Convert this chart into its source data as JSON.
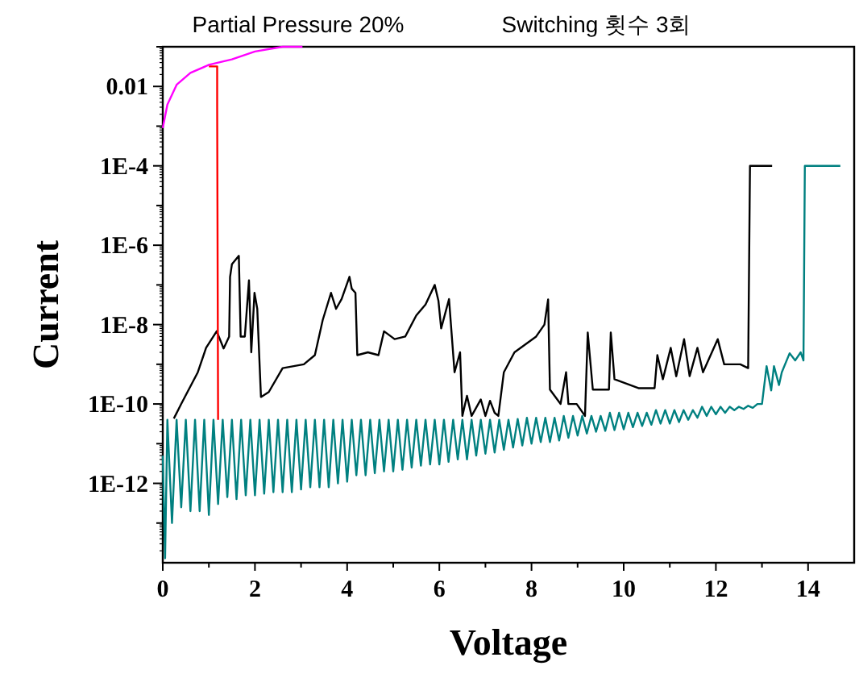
{
  "chart_data": {
    "type": "line",
    "xlabel": "Voltage",
    "ylabel": "Current",
    "log": "y",
    "annotations": [
      "Partial Pressure 20%",
      "Switching 횟수 3회"
    ],
    "xlim": [
      0,
      15
    ],
    "ylim": [
      1e-14,
      0.1
    ],
    "xticks": [
      0,
      {
        "value": 1,
        "label": null
      },
      2,
      {
        "value": 3,
        "label": null
      },
      4,
      {
        "value": 5,
        "label": null
      },
      6,
      {
        "value": 7,
        "label": null
      },
      8,
      {
        "value": 9,
        "label": null
      },
      10,
      {
        "value": 11,
        "label": null
      },
      12,
      {
        "value": 13,
        "label": null
      },
      14
    ],
    "yticks": [
      {
        "value": 1e-13,
        "label": null
      },
      {
        "value": 1e-12,
        "label": "1E-12"
      },
      {
        "value": 1e-11,
        "label": null
      },
      {
        "value": 1e-10,
        "label": "1E-10"
      },
      {
        "value": 1e-09,
        "label": null
      },
      {
        "value": 1e-08,
        "label": "1E-8"
      },
      {
        "value": 1e-07,
        "label": null
      },
      {
        "value": 1e-06,
        "label": "1E-6"
      },
      {
        "value": 1e-05,
        "label": null
      },
      {
        "value": 0.0001,
        "label": "1E-4"
      },
      {
        "value": 0.001,
        "label": null
      },
      {
        "value": 0.01,
        "label": "0.01"
      },
      {
        "value": 0.1,
        "label": null
      }
    ],
    "series": [
      {
        "color": "#008080",
        "x": [
          0,
          0.05,
          0.1,
          0.2,
          0.3,
          0.4,
          0.5,
          0.6,
          0.7,
          0.8,
          0.9,
          1.0,
          1.1,
          1.2,
          1.3,
          1.4,
          1.5,
          1.6,
          1.7,
          1.8,
          1.9,
          2.0,
          2.1,
          2.2,
          2.3,
          2.4,
          2.5,
          2.6,
          2.7,
          2.8,
          2.9,
          3.0,
          3.1,
          3.2,
          3.3,
          3.4,
          3.5,
          3.6,
          3.7,
          3.8,
          3.9,
          4.0,
          4.1,
          4.2,
          4.3,
          4.4,
          4.5,
          4.6,
          4.7,
          4.8,
          4.9,
          5.0,
          5.1,
          5.2,
          5.3,
          5.4,
          5.5,
          5.6,
          5.7,
          5.8,
          5.9,
          6.0,
          6.1,
          6.2,
          6.3,
          6.4,
          6.5,
          6.6,
          6.7,
          6.8,
          6.9,
          7.0,
          7.1,
          7.2,
          7.3,
          7.4,
          7.5,
          7.6,
          7.7,
          7.8,
          7.9,
          8.0,
          8.1,
          8.2,
          8.3,
          8.4,
          8.5,
          8.6,
          8.7,
          8.8,
          8.9,
          9.0,
          9.1,
          9.2,
          9.3,
          9.4,
          9.5,
          9.6,
          9.7,
          9.8,
          9.9,
          10.0,
          10.1,
          10.2,
          10.3,
          10.4,
          10.5,
          10.6,
          10.7,
          10.8,
          10.9,
          11.0,
          11.1,
          11.2,
          11.3,
          11.4,
          11.5,
          11.6,
          11.7,
          11.8,
          11.9,
          12.0,
          12.1,
          12.2,
          12.3,
          12.4,
          12.5,
          12.6,
          12.7,
          12.8,
          12.9,
          13.0,
          13.1,
          13.2,
          13.26,
          13.37,
          13.43,
          13.6,
          13.72,
          13.84,
          13.9,
          13.93,
          14.7
        ],
        "values": [
          5e-12,
          1.3e-14,
          4e-11,
          1e-13,
          4e-11,
          2.5e-13,
          4e-11,
          2e-13,
          4e-11,
          2e-13,
          4e-11,
          1.6e-13,
          4e-11,
          3e-13,
          4e-11,
          4.5e-13,
          4e-11,
          4e-13,
          4e-11,
          5e-13,
          4e-11,
          5e-13,
          4e-11,
          5.5e-13,
          4e-11,
          6e-13,
          4e-11,
          6e-13,
          4e-11,
          6e-13,
          4e-11,
          7e-13,
          4e-11,
          8e-13,
          4e-11,
          8e-13,
          4e-11,
          8e-13,
          4e-11,
          1e-12,
          4e-11,
          1.1e-12,
          4e-11,
          1.6e-12,
          4e-11,
          1.6e-12,
          4e-11,
          1.8e-12,
          4e-11,
          2e-12,
          4e-11,
          2e-12,
          4e-11,
          2.2e-12,
          4e-11,
          2.5e-12,
          4e-11,
          2.8e-12,
          4e-11,
          3e-12,
          4e-11,
          3e-12,
          4e-11,
          3.5e-12,
          4e-11,
          4e-12,
          4e-11,
          4e-12,
          4e-11,
          5e-12,
          4e-11,
          5.6e-12,
          4e-11,
          6e-12,
          4e-11,
          7e-12,
          4e-11,
          8e-12,
          4.2e-11,
          9e-12,
          4.5e-11,
          1e-11,
          4.5e-11,
          1.1e-11,
          4.5e-11,
          1.1e-11,
          4.5e-11,
          1.2e-11,
          5e-11,
          1.4e-11,
          5e-11,
          1.6e-11,
          5e-11,
          1.8e-11,
          5e-11,
          2e-11,
          5e-11,
          2.1e-11,
          6e-11,
          2.2e-11,
          6e-11,
          2.3e-11,
          6e-11,
          2.6e-11,
          6e-11,
          2.8e-11,
          6e-11,
          3e-11,
          7e-11,
          3.2e-11,
          7e-11,
          3.2e-11,
          7e-11,
          3.5e-11,
          7e-11,
          4e-11,
          7e-11,
          4.5e-11,
          8.5e-11,
          5e-11,
          8.5e-11,
          5.5e-11,
          8.5e-11,
          6e-11,
          8.5e-11,
          7e-11,
          8.5e-11,
          7.5e-11,
          9e-11,
          8e-11,
          1e-10,
          1e-10,
          9e-10,
          2.2e-10,
          9e-10,
          3e-10,
          6.3e-10,
          1.9e-09,
          1.25e-09,
          2e-09,
          1.25e-09,
          0.0001,
          0.0001
        ]
      },
      {
        "color": "#000000",
        "x": [
          0.24,
          0.4,
          0.76,
          0.94,
          1.17,
          1.32,
          1.44,
          1.46,
          1.5,
          1.65,
          1.69,
          1.78,
          1.87,
          1.92,
          1.99,
          2.05,
          2.13,
          2.3,
          2.6,
          3.06,
          3.3,
          3.47,
          3.65,
          3.76,
          3.88,
          4.05,
          4.1,
          4.18,
          4.22,
          4.45,
          4.68,
          4.8,
          5.03,
          5.26,
          5.5,
          5.7,
          5.9,
          5.98,
          6.04,
          6.21,
          6.33,
          6.45,
          6.5,
          6.6,
          6.7,
          6.9,
          7.0,
          7.1,
          7.2,
          7.28,
          7.4,
          7.63,
          8.1,
          8.28,
          8.36,
          8.4,
          8.63,
          8.75,
          8.8,
          8.98,
          9.16,
          9.22,
          9.33,
          9.68,
          9.72,
          9.8,
          10.32,
          10.67,
          10.73,
          10.85,
          11.02,
          11.14,
          11.31,
          11.43,
          11.6,
          11.72,
          12.04,
          12.18,
          12.53,
          12.7,
          12.74,
          13.22
        ],
        "values": [
          4.3e-11,
          1e-10,
          6.3e-10,
          2.6e-09,
          6.8e-09,
          2.5e-09,
          5e-09,
          1.6e-07,
          3.3e-07,
          5.4e-07,
          5e-09,
          5e-09,
          1.3e-07,
          2e-09,
          6.3e-08,
          2.5e-08,
          1.5e-10,
          2e-10,
          8e-10,
          1e-09,
          1.7e-09,
          1.3e-08,
          6.3e-08,
          2.5e-08,
          4.4e-08,
          1.6e-07,
          8e-08,
          6.3e-08,
          1.7e-09,
          2e-09,
          1.7e-09,
          6.8e-09,
          4.3e-09,
          5e-09,
          1.7e-08,
          3.2e-08,
          1e-07,
          4e-08,
          8e-09,
          4.4e-08,
          6.3e-10,
          2e-09,
          5e-11,
          1.6e-10,
          5e-11,
          1.3e-10,
          5e-11,
          1.2e-10,
          6e-11,
          5e-11,
          6.3e-10,
          2e-09,
          5e-09,
          1e-08,
          4.3e-08,
          2.3e-10,
          1e-10,
          6.3e-10,
          1e-10,
          1e-10,
          5e-11,
          6.3e-09,
          2.3e-10,
          2.3e-10,
          6.3e-09,
          4.2e-10,
          2.5e-10,
          2.5e-10,
          1.7e-09,
          4.2e-10,
          2.6e-09,
          5e-10,
          4.3e-09,
          5e-10,
          2.6e-09,
          6.3e-10,
          4.3e-09,
          1e-09,
          1e-09,
          8e-10,
          0.0001,
          0.0001
        ]
      },
      {
        "color": "#ff0000",
        "x": [
          1.0,
          1.18,
          1.18,
          1.2
        ],
        "values": [
          0.032,
          0.032,
          0.0032,
          4e-11
        ]
      },
      {
        "color": "#ff00ff",
        "x": [
          0,
          0.1,
          0.3,
          0.6,
          1.0,
          1.5,
          2.0,
          2.6,
          3.03
        ],
        "values": [
          0.0009,
          0.0035,
          0.011,
          0.022,
          0.035,
          0.048,
          0.076,
          0.1,
          0.1
        ]
      }
    ]
  }
}
